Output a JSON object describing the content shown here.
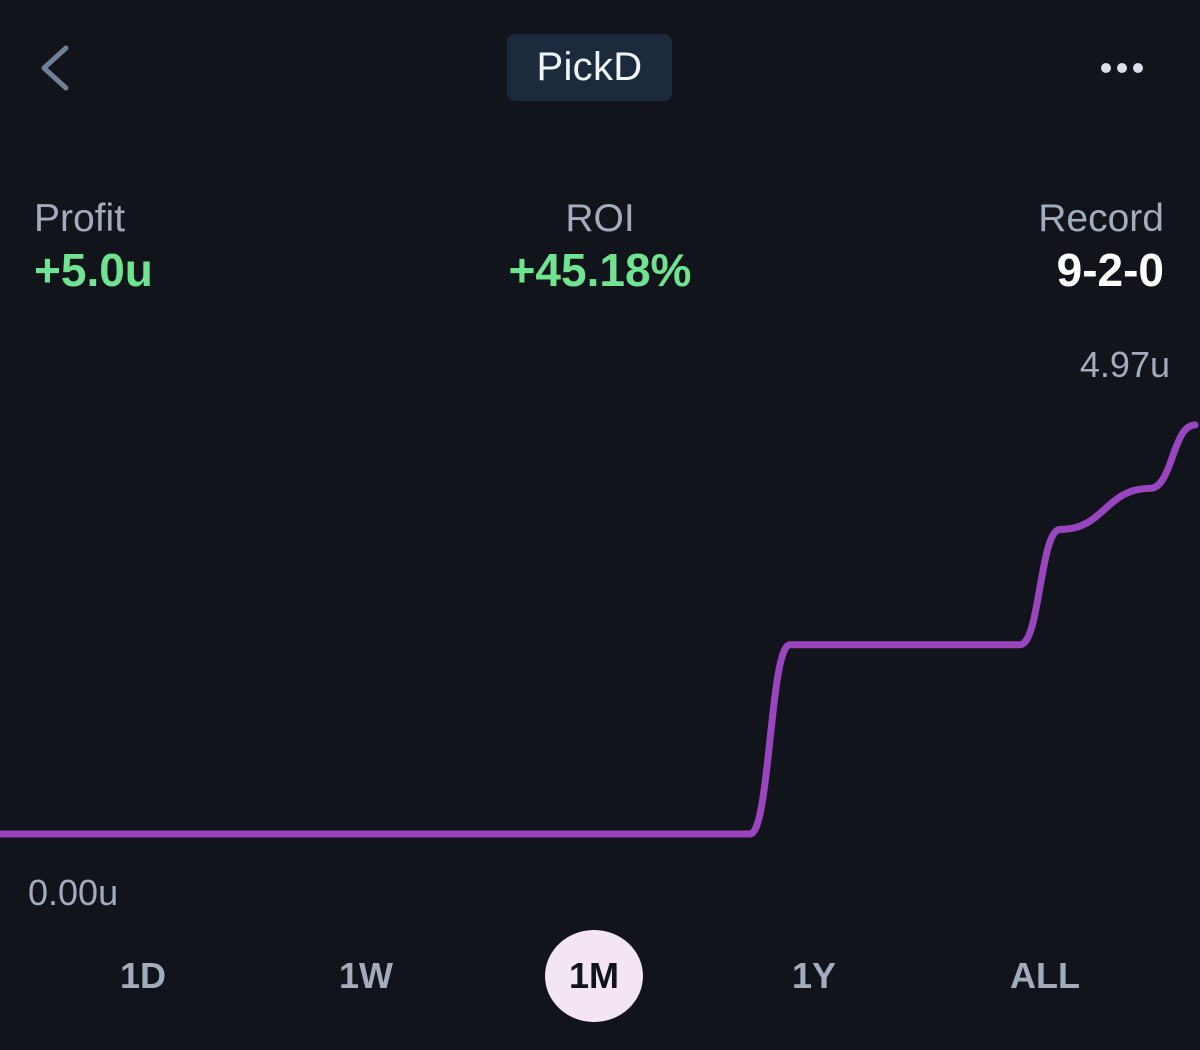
{
  "header": {
    "title": "PickD",
    "back_icon": "chevron-left-icon",
    "more_icon": "more-horizontal-icon"
  },
  "stats": {
    "profit": {
      "label": "Profit",
      "value": "+5.0u"
    },
    "roi": {
      "label": "ROI",
      "value": "+45.18%"
    },
    "record": {
      "label": "Record",
      "value": "9-2-0"
    }
  },
  "chart_data": {
    "type": "line",
    "y_max_label": "4.97u",
    "y_min_label": "0.00u",
    "ylim": [
      0,
      4.97
    ],
    "x": [
      0,
      1,
      2,
      3,
      4,
      5,
      6,
      7,
      8,
      9,
      10
    ],
    "values": [
      0,
      0,
      0,
      0,
      0,
      0,
      2.3,
      2.3,
      3.7,
      4.2,
      4.97
    ],
    "series_color": "#9a45c0"
  },
  "ranges": {
    "selected": "1M",
    "options": [
      "1D",
      "1W",
      "1M",
      "1Y",
      "ALL"
    ]
  },
  "colors": {
    "background": "#11141b",
    "positive": "#6fe38f",
    "title_pill": "#1b2b3d",
    "active_range": "#f3e6f2"
  }
}
